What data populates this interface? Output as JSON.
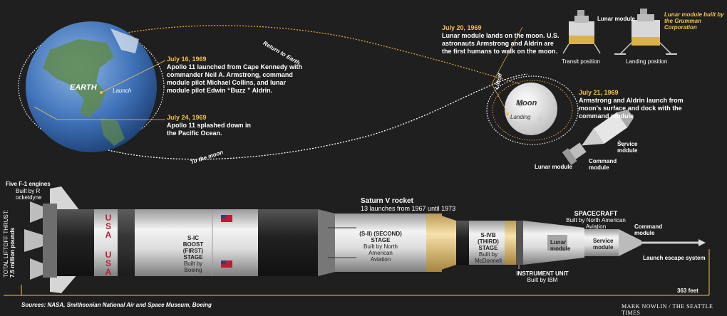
{
  "earth": {
    "label": "EARTH",
    "launch": "Launch"
  },
  "moon": {
    "label": "Moon",
    "landing": "Landing",
    "liftoff": "Liftoff"
  },
  "paths": {
    "return": "Return to Earth",
    "to_moon": "To the moon"
  },
  "events": {
    "jul16": {
      "date": "July 16, 1969",
      "text": "Apollo 11 launched from Cape Kennedy with commander Neil A. Armstrong, command module pilot Michael Collins, and lunar module pilot Edwin “Buzz ” Aldrin."
    },
    "jul24": {
      "date": "July 24, 1969",
      "text": "Apollo 11 splashed down in the Pacific Ocean."
    },
    "jul20": {
      "date": "July 20, 1969",
      "text": "Lunar module lands on the moon. U.S. astronauts Armstrong and Aldrin are the first humans to walk on the moon."
    },
    "jul21": {
      "date": "July 21, 1969",
      "text": "Armstrong and Aldrin launch from moon’s surface and dock with the command module"
    }
  },
  "lm": {
    "title": "Lunar module",
    "built": "Lunar module built by the Grumman Corporation",
    "transit": "Transit position",
    "landing": "Landing position"
  },
  "csm": {
    "service": "Service module",
    "command": "Command module",
    "lunar": "Lunar module"
  },
  "rocket": {
    "title": "Saturn V rocket",
    "subtitle": "13 launches from 1967 until 1973",
    "f1": "Five F-1 engines",
    "f1_built": "Built by R ocketdyne",
    "thrust_label": "TOTAL LIFTOFF THRUST:",
    "thrust_value": "7.5 million pounds",
    "usa": "USA",
    "s1c": {
      "name": "S-IC BOOST (FIRST) STAGE",
      "built": "Built by Boeing"
    },
    "s2": {
      "name": "(S-II) (SECOND) STAGE",
      "built": "Built by North American Aviation"
    },
    "s4b": {
      "name": "S-IVB (THIRD) STAGE",
      "built": "Built by McDonnell Douglas"
    },
    "iu": {
      "name": "INSTRUMENT UNIT",
      "built": "Built by IBM"
    },
    "spacecraft": {
      "name": "SPACECRAFT",
      "built": "Built by North American Aviation"
    },
    "lunar_module": "Lunar module",
    "service_module": "Service module",
    "command_module": "Command module",
    "les": "Launch escape system",
    "height": "363 feet"
  },
  "footer": {
    "sources": "Sources: NASA, Smithsonian National Air and Space Museum, Boeing",
    "credit": "MARK NOWLIN / THE SEATTLE TIMES"
  },
  "colors": {
    "orbit_gold": "#e3a63a",
    "earth_blue": "#3f72b8",
    "rocket_white": "#e8e8e8",
    "rocket_dark": "#2b2b2b",
    "fuel_tan": "#f2d79a"
  }
}
